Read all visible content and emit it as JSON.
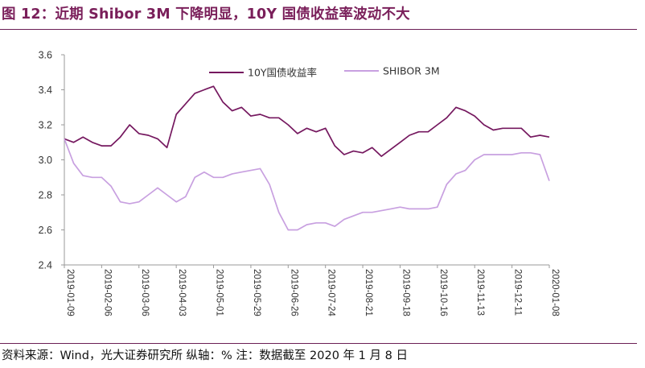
{
  "header": {
    "title": "图 12：近期 Shibor 3M 下降明显，10Y 国债收益率波动不大"
  },
  "footer": {
    "source": "资料来源：Wind，光大证券研究所 纵轴：%  注：数据截至 2020 年 1 月 8 日"
  },
  "colors": {
    "title": "#7a1f5a",
    "rule": "#6b1f55",
    "series_10y": "#75185f",
    "series_shibor": "#c8a0e0"
  },
  "chart_data": {
    "type": "line",
    "title": "",
    "xlabel": "",
    "ylabel": "",
    "ylim": [
      2.4,
      3.6
    ],
    "yticks": [
      "2.4",
      "2.6",
      "2.8",
      "3.0",
      "3.2",
      "3.4",
      "3.6"
    ],
    "x_tick_labels": [
      "2019-01-09",
      "2019-02-06",
      "2019-03-06",
      "2019-04-03",
      "2019-05-01",
      "2019-05-29",
      "2019-06-26",
      "2019-07-24",
      "2019-08-21",
      "2019-09-18",
      "2019-10-16",
      "2019-11-13",
      "2019-12-11",
      "2020-01-08"
    ],
    "grid": false,
    "legend_position": "top",
    "x": [
      "2019-01-09",
      "2019-01-16",
      "2019-01-23",
      "2019-01-30",
      "2019-02-06",
      "2019-02-13",
      "2019-02-20",
      "2019-02-27",
      "2019-03-06",
      "2019-03-13",
      "2019-03-20",
      "2019-03-27",
      "2019-04-03",
      "2019-04-10",
      "2019-04-17",
      "2019-04-24",
      "2019-05-01",
      "2019-05-08",
      "2019-05-15",
      "2019-05-22",
      "2019-05-29",
      "2019-06-05",
      "2019-06-12",
      "2019-06-19",
      "2019-06-26",
      "2019-07-03",
      "2019-07-10",
      "2019-07-17",
      "2019-07-24",
      "2019-07-31",
      "2019-08-07",
      "2019-08-14",
      "2019-08-21",
      "2019-08-28",
      "2019-09-04",
      "2019-09-11",
      "2019-09-18",
      "2019-09-25",
      "2019-10-02",
      "2019-10-09",
      "2019-10-16",
      "2019-10-23",
      "2019-10-30",
      "2019-11-06",
      "2019-11-13",
      "2019-11-20",
      "2019-11-27",
      "2019-12-04",
      "2019-12-11",
      "2019-12-18",
      "2019-12-25",
      "2020-01-01",
      "2020-01-08"
    ],
    "series": [
      {
        "name": "10Y国债收益率",
        "values": [
          3.12,
          3.1,
          3.13,
          3.1,
          3.08,
          3.08,
          3.13,
          3.2,
          3.15,
          3.14,
          3.12,
          3.07,
          3.26,
          3.32,
          3.38,
          3.4,
          3.42,
          3.33,
          3.28,
          3.3,
          3.25,
          3.26,
          3.24,
          3.24,
          3.2,
          3.15,
          3.18,
          3.16,
          3.18,
          3.08,
          3.03,
          3.05,
          3.04,
          3.07,
          3.02,
          3.06,
          3.1,
          3.14,
          3.16,
          3.16,
          3.2,
          3.24,
          3.3,
          3.28,
          3.25,
          3.2,
          3.17,
          3.18,
          3.18,
          3.18,
          3.13,
          3.14,
          3.13
        ]
      },
      {
        "name": "SHIBOR 3M",
        "values": [
          3.12,
          2.98,
          2.91,
          2.9,
          2.9,
          2.85,
          2.76,
          2.75,
          2.76,
          2.8,
          2.84,
          2.8,
          2.76,
          2.79,
          2.9,
          2.93,
          2.9,
          2.9,
          2.92,
          2.93,
          2.94,
          2.95,
          2.86,
          2.7,
          2.6,
          2.6,
          2.63,
          2.64,
          2.64,
          2.62,
          2.66,
          2.68,
          2.7,
          2.7,
          2.71,
          2.72,
          2.73,
          2.72,
          2.72,
          2.72,
          2.73,
          2.86,
          2.92,
          2.94,
          3.0,
          3.03,
          3.03,
          3.03,
          3.03,
          3.04,
          3.04,
          3.03,
          2.88
        ]
      }
    ]
  }
}
